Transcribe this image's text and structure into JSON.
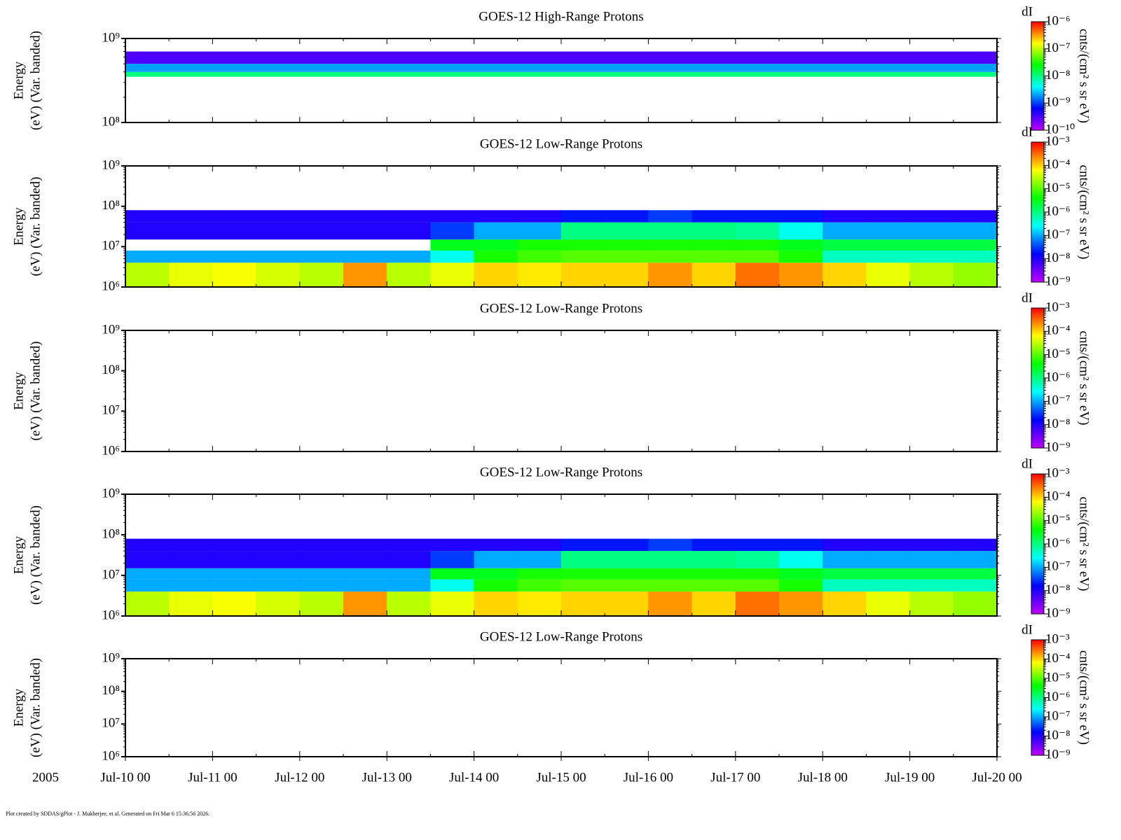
{
  "time_axis": {
    "xlim": [
      "2005-07-10T00:00",
      "2005-07-20T00:00"
    ],
    "xticks": [
      {
        "value": "2005-07-10T00:00",
        "label": "Jul-10 00"
      },
      {
        "value": "2005-07-11T00:00",
        "label": "Jul-11 00"
      },
      {
        "value": "2005-07-12T00:00",
        "label": "Jul-12 00"
      },
      {
        "value": "2005-07-13T00:00",
        "label": "Jul-13 00"
      },
      {
        "value": "2005-07-14T00:00",
        "label": "Jul-14 00"
      },
      {
        "value": "2005-07-15T00:00",
        "label": "Jul-15 00"
      },
      {
        "value": "2005-07-16T00:00",
        "label": "Jul-16 00"
      },
      {
        "value": "2005-07-17T00:00",
        "label": "Jul-17 00"
      },
      {
        "value": "2005-07-18T00:00",
        "label": "Jul-18 00"
      },
      {
        "value": "2005-07-19T00:00",
        "label": "Jul-19 00"
      },
      {
        "value": "2005-07-20T00:00",
        "label": "Jul-20 00"
      }
    ],
    "year": "2005"
  },
  "footer": "Plot created by SDDAS/gPlot - J. Mukherjee, et al.  Generated on Fri Mar 6 15:36:56 2026.",
  "chart_data": [
    {
      "type": "spectrogram",
      "title": "GOES-12 High-Range Protons",
      "ylabel": [
        "Energy",
        "(eV) (Var. banded)"
      ],
      "log_y": true,
      "ylim": [
        100000000,
        1000000000
      ],
      "yticks": [
        {
          "value": 100000000,
          "label": "10⁸"
        },
        {
          "value": 1000000000,
          "label": "10⁹"
        }
      ],
      "zname": "dI",
      "zlabel": "cnts/(cm² s sr eV)",
      "log_z": true,
      "zlim": [
        1e-10,
        1e-06
      ],
      "zticks": [
        {
          "value": 1e-10,
          "label": "10⁻¹⁰"
        },
        {
          "value": 1e-09,
          "label": "10⁻⁹"
        },
        {
          "value": 1e-08,
          "label": "10⁻⁸"
        },
        {
          "value": 1e-07,
          "label": "10⁻⁷"
        },
        {
          "value": 1e-06,
          "label": "10⁻⁶"
        }
      ],
      "colormap": [
        "#c000ff",
        "#0000ff",
        "#00ffff",
        "#00ff00",
        "#ffff00",
        "#ff0000"
      ],
      "x": [
        "2005-07-10T00:00",
        "2005-07-10T12:00",
        "2005-07-11T00:00",
        "2005-07-11T12:00",
        "2005-07-12T00:00",
        "2005-07-12T12:00",
        "2005-07-13T00:00",
        "2005-07-13T12:00",
        "2005-07-14T00:00",
        "2005-07-14T12:00",
        "2005-07-15T00:00",
        "2005-07-15T12:00",
        "2005-07-16T00:00",
        "2005-07-16T12:00",
        "2005-07-17T00:00",
        "2005-07-17T12:00",
        "2005-07-18T00:00",
        "2005-07-18T12:00",
        "2005-07-19T00:00",
        "2005-07-19T12:00",
        "2005-07-20T00:00"
      ],
      "bands": [
        [
          350000000,
          400000000
        ],
        [
          400000000,
          500000000
        ],
        [
          500000000,
          700000000
        ]
      ],
      "values": [
        [
          1e-08,
          1e-08,
          1e-08,
          1e-08,
          1e-08,
          1e-08,
          1e-08,
          1e-08,
          1e-08,
          1e-08,
          1e-08,
          1e-08,
          1e-08,
          1e-08,
          1e-08,
          1e-08,
          1e-08,
          1e-08,
          1e-08,
          1e-08
        ],
        [
          2e-09,
          2e-09,
          2e-09,
          2e-09,
          2e-09,
          2e-09,
          2e-09,
          2e-09,
          2e-09,
          2e-09,
          2e-09,
          2e-09,
          2e-09,
          2e-09,
          2e-09,
          2e-09,
          2e-09,
          2e-09,
          2e-09,
          2e-09
        ],
        [
          3e-10,
          3e-10,
          3e-10,
          3e-10,
          3e-10,
          3e-10,
          3e-10,
          3e-10,
          3e-10,
          3e-10,
          3e-10,
          3e-10,
          3e-10,
          3e-10,
          3e-10,
          3e-10,
          3e-10,
          3e-10,
          3e-10,
          3e-10
        ]
      ]
    },
    {
      "type": "spectrogram",
      "title": "GOES-12 Low-Range Protons",
      "ylabel": [
        "Energy",
        "(eV) (Var. banded)"
      ],
      "log_y": true,
      "ylim": [
        1000000,
        1000000000
      ],
      "yticks": [
        {
          "value": 1000000,
          "label": "10⁶"
        },
        {
          "value": 10000000,
          "label": "10⁷"
        },
        {
          "value": 100000000,
          "label": "10⁸"
        },
        {
          "value": 1000000000,
          "label": "10⁹"
        }
      ],
      "zname": "dI",
      "zlabel": "cnts/(cm² s sr eV)",
      "log_z": true,
      "zlim": [
        1e-09,
        0.001
      ],
      "zticks": [
        {
          "value": 1e-09,
          "label": "10⁻⁹"
        },
        {
          "value": 1e-08,
          "label": "10⁻⁸"
        },
        {
          "value": 1e-07,
          "label": "10⁻⁷"
        },
        {
          "value": 1e-06,
          "label": "10⁻⁶"
        },
        {
          "value": 1e-05,
          "label": "10⁻⁵"
        },
        {
          "value": 0.0001,
          "label": "10⁻⁴"
        },
        {
          "value": 0.001,
          "label": "10⁻³"
        }
      ],
      "colormap": [
        "#c000ff",
        "#0000ff",
        "#00ffff",
        "#00ff00",
        "#ffff00",
        "#ff0000"
      ],
      "x": [
        "2005-07-10T00:00",
        "2005-07-10T12:00",
        "2005-07-11T00:00",
        "2005-07-11T12:00",
        "2005-07-12T00:00",
        "2005-07-12T12:00",
        "2005-07-13T00:00",
        "2005-07-13T12:00",
        "2005-07-14T00:00",
        "2005-07-14T12:00",
        "2005-07-15T00:00",
        "2005-07-15T12:00",
        "2005-07-16T00:00",
        "2005-07-16T12:00",
        "2005-07-17T00:00",
        "2005-07-17T12:00",
        "2005-07-18T00:00",
        "2005-07-18T12:00",
        "2005-07-19T00:00",
        "2005-07-19T12:00",
        "2005-07-20T00:00"
      ],
      "bands": [
        [
          1000000,
          4000000
        ],
        [
          4000000,
          8000000
        ],
        [
          8000000,
          15000000
        ],
        [
          15000000,
          40000000
        ],
        [
          40000000,
          80000000
        ]
      ],
      "values": [
        [
          3e-05,
          5e-05,
          6e-05,
          4e-05,
          3e-05,
          0.0002,
          3e-05,
          5e-05,
          0.0001,
          8e-05,
          0.0001,
          0.0001,
          0.0002,
          0.0001,
          0.0003,
          0.0002,
          0.0001,
          5e-05,
          3e-05,
          2e-05
        ],
        [
          1e-07,
          1e-07,
          1e-07,
          1e-07,
          1e-07,
          1e-07,
          1e-07,
          3e-07,
          5e-06,
          8e-06,
          1e-05,
          1e-05,
          1e-05,
          1e-05,
          1e-05,
          5e-06,
          5e-07,
          5e-07,
          5e-07,
          5e-07
        ],
        [
          null,
          null,
          null,
          null,
          null,
          null,
          null,
          3e-06,
          3e-06,
          5e-06,
          5e-06,
          5e-06,
          5e-06,
          5e-06,
          5e-06,
          3e-06,
          2e-06,
          2e-06,
          2e-06,
          2e-06
        ],
        [
          1e-08,
          1e-08,
          1e-08,
          1e-08,
          1e-08,
          1e-08,
          1e-08,
          3e-08,
          1e-07,
          1e-07,
          1e-06,
          1e-06,
          1e-06,
          1e-06,
          8e-07,
          3e-07,
          1e-07,
          1e-07,
          1e-07,
          1e-07
        ],
        [
          1e-08,
          1e-08,
          1e-08,
          1e-08,
          1e-08,
          1e-08,
          1e-08,
          1e-08,
          1e-08,
          1e-08,
          2e-08,
          2e-08,
          3e-08,
          2e-08,
          2e-08,
          2e-08,
          1e-08,
          1e-08,
          1e-08,
          1e-08
        ]
      ]
    },
    {
      "type": "spectrogram",
      "title": "GOES-12 Low-Range Protons",
      "ylabel": [
        "Energy",
        "(eV) (Var. banded)"
      ],
      "log_y": true,
      "ylim": [
        1000000,
        1000000000
      ],
      "yticks": [
        {
          "value": 1000000,
          "label": "10⁶"
        },
        {
          "value": 10000000,
          "label": "10⁷"
        },
        {
          "value": 100000000,
          "label": "10⁸"
        },
        {
          "value": 1000000000,
          "label": "10⁹"
        }
      ],
      "zname": "dI",
      "zlabel": "cnts/(cm² s sr eV)",
      "log_z": true,
      "zlim": [
        1e-09,
        0.001
      ],
      "zticks": [
        {
          "value": 1e-09,
          "label": "10⁻⁹"
        },
        {
          "value": 1e-08,
          "label": "10⁻⁸"
        },
        {
          "value": 1e-07,
          "label": "10⁻⁷"
        },
        {
          "value": 1e-06,
          "label": "10⁻⁶"
        },
        {
          "value": 1e-05,
          "label": "10⁻⁵"
        },
        {
          "value": 0.0001,
          "label": "10⁻⁴"
        },
        {
          "value": 0.001,
          "label": "10⁻³"
        }
      ],
      "colormap": [
        "#c000ff",
        "#0000ff",
        "#00ffff",
        "#00ff00",
        "#ffff00",
        "#ff0000"
      ]
    },
    {
      "type": "spectrogram",
      "title": "GOES-12 Low-Range Protons",
      "ylabel": [
        "Energy",
        "(eV) (Var. banded)"
      ],
      "log_y": true,
      "ylim": [
        1000000,
        1000000000
      ],
      "yticks": [
        {
          "value": 1000000,
          "label": "10⁶"
        },
        {
          "value": 10000000,
          "label": "10⁷"
        },
        {
          "value": 100000000,
          "label": "10⁸"
        },
        {
          "value": 1000000000,
          "label": "10⁹"
        }
      ],
      "zname": "dI",
      "zlabel": "cnts/(cm² s sr eV)",
      "log_z": true,
      "zlim": [
        1e-09,
        0.001
      ],
      "zticks": [
        {
          "value": 1e-09,
          "label": "10⁻⁹"
        },
        {
          "value": 1e-08,
          "label": "10⁻⁸"
        },
        {
          "value": 1e-07,
          "label": "10⁻⁷"
        },
        {
          "value": 1e-06,
          "label": "10⁻⁶"
        },
        {
          "value": 1e-05,
          "label": "10⁻⁵"
        },
        {
          "value": 0.0001,
          "label": "10⁻⁴"
        },
        {
          "value": 0.001,
          "label": "10⁻³"
        }
      ],
      "colormap": [
        "#c000ff",
        "#0000ff",
        "#00ffff",
        "#00ff00",
        "#ffff00",
        "#ff0000"
      ],
      "x": [
        "2005-07-10T00:00",
        "2005-07-10T12:00",
        "2005-07-11T00:00",
        "2005-07-11T12:00",
        "2005-07-12T00:00",
        "2005-07-12T12:00",
        "2005-07-13T00:00",
        "2005-07-13T12:00",
        "2005-07-14T00:00",
        "2005-07-14T12:00",
        "2005-07-15T00:00",
        "2005-07-15T12:00",
        "2005-07-16T00:00",
        "2005-07-16T12:00",
        "2005-07-17T00:00",
        "2005-07-17T12:00",
        "2005-07-18T00:00",
        "2005-07-18T12:00",
        "2005-07-19T00:00",
        "2005-07-19T12:00",
        "2005-07-20T00:00"
      ],
      "bands": [
        [
          1000000,
          4000000
        ],
        [
          4000000,
          8000000
        ],
        [
          8000000,
          15000000
        ],
        [
          15000000,
          40000000
        ],
        [
          40000000,
          80000000
        ]
      ],
      "values": [
        [
          3e-05,
          5e-05,
          6e-05,
          4e-05,
          3e-05,
          0.0002,
          3e-05,
          5e-05,
          0.0001,
          8e-05,
          0.0001,
          0.0001,
          0.0002,
          0.0001,
          0.0003,
          0.0002,
          0.0001,
          5e-05,
          3e-05,
          2e-05
        ],
        [
          1e-07,
          1e-07,
          1e-07,
          1e-07,
          1e-07,
          1e-07,
          1e-07,
          3e-07,
          5e-06,
          8e-06,
          1e-05,
          1e-05,
          1e-05,
          1e-05,
          1e-05,
          5e-06,
          5e-07,
          5e-07,
          5e-07,
          5e-07
        ],
        [
          1e-07,
          1e-07,
          1e-07,
          1e-07,
          1e-07,
          1e-07,
          1e-07,
          3e-06,
          3e-06,
          5e-06,
          5e-06,
          5e-06,
          5e-06,
          5e-06,
          5e-06,
          3e-06,
          2e-06,
          2e-06,
          2e-06,
          2e-06
        ],
        [
          1e-08,
          1e-08,
          1e-08,
          1e-08,
          1e-08,
          1e-08,
          1e-08,
          3e-08,
          1e-07,
          1e-07,
          1e-06,
          1e-06,
          1e-06,
          1e-06,
          8e-07,
          3e-07,
          1e-07,
          1e-07,
          1e-07,
          1e-07
        ],
        [
          1e-08,
          1e-08,
          1e-08,
          1e-08,
          1e-08,
          1e-08,
          1e-08,
          1e-08,
          1e-08,
          1e-08,
          2e-08,
          2e-08,
          3e-08,
          2e-08,
          2e-08,
          2e-08,
          1e-08,
          1e-08,
          1e-08,
          1e-08
        ]
      ]
    },
    {
      "type": "spectrogram",
      "title": "GOES-12 Low-Range Protons",
      "ylabel": [
        "Energy",
        "(eV) (Var. banded)"
      ],
      "log_y": true,
      "ylim": [
        1000000,
        1000000000
      ],
      "yticks": [
        {
          "value": 1000000,
          "label": "10⁶"
        },
        {
          "value": 10000000,
          "label": "10⁷"
        },
        {
          "value": 100000000,
          "label": "10⁸"
        },
        {
          "value": 1000000000,
          "label": "10⁹"
        }
      ],
      "zname": "dI",
      "zlabel": "cnts/(cm² s sr eV)",
      "log_z": true,
      "zlim": [
        1e-09,
        0.001
      ],
      "zticks": [
        {
          "value": 1e-09,
          "label": "10⁻⁹"
        },
        {
          "value": 1e-08,
          "label": "10⁻⁸"
        },
        {
          "value": 1e-07,
          "label": "10⁻⁷"
        },
        {
          "value": 1e-06,
          "label": "10⁻⁶"
        },
        {
          "value": 1e-05,
          "label": "10⁻⁵"
        },
        {
          "value": 0.0001,
          "label": "10⁻⁴"
        },
        {
          "value": 0.001,
          "label": "10⁻³"
        }
      ],
      "colormap": [
        "#c000ff",
        "#0000ff",
        "#00ffff",
        "#00ff00",
        "#ffff00",
        "#ff0000"
      ]
    }
  ]
}
